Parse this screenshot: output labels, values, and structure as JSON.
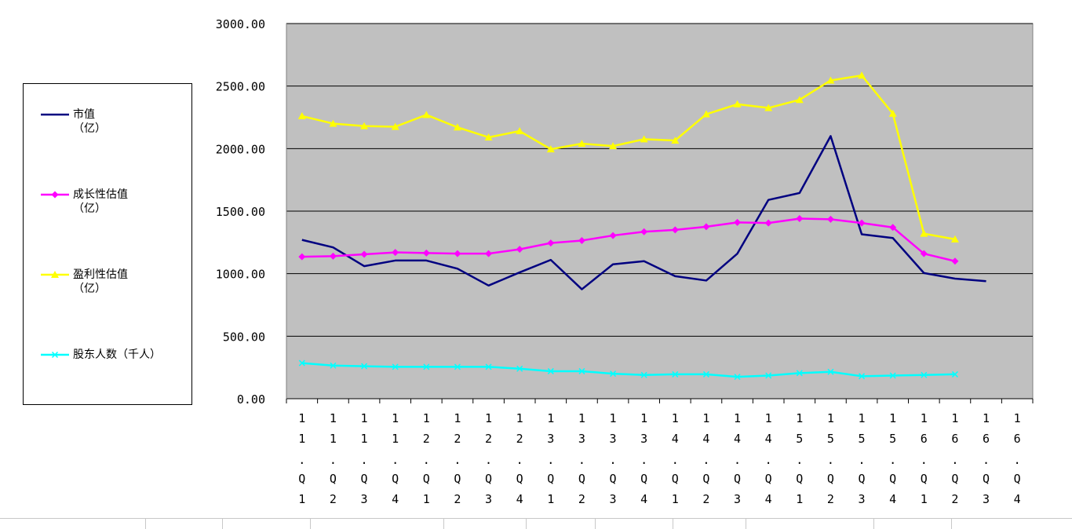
{
  "chart_data": {
    "type": "line",
    "categories": [
      "11.Q1",
      "11.Q2",
      "11.Q3",
      "11.Q4",
      "12.Q1",
      "12.Q2",
      "12.Q3",
      "12.Q4",
      "13.Q1",
      "13.Q2",
      "13.Q3",
      "13.Q4",
      "14.Q1",
      "14.Q2",
      "14.Q3",
      "14.Q4",
      "15.Q1",
      "15.Q2",
      "15.Q3",
      "15.Q4",
      "16.Q1",
      "16.Q2",
      "16.Q3",
      "16.Q4"
    ],
    "ylim": [
      0,
      3000
    ],
    "yticks": [
      "0.00",
      "500.00",
      "1000.00",
      "1500.00",
      "2000.00",
      "2500.00",
      "3000.00"
    ],
    "plot_background": "#c0c0c0",
    "grid": true,
    "legend_position": "left",
    "series": [
      {
        "name": "市值\n（亿）",
        "color": "#000080",
        "marker": "none",
        "values": [
          1270,
          1210,
          1060,
          1105,
          1105,
          1040,
          905,
          1010,
          1110,
          875,
          1075,
          1100,
          980,
          945,
          1160,
          1590,
          1645,
          2100,
          1315,
          1285,
          1005,
          960,
          940,
          null
        ]
      },
      {
        "name": "成长性估值\n（亿）",
        "color": "#ff00ff",
        "marker": "diamond",
        "values": [
          1135,
          1140,
          1155,
          1170,
          1165,
          1160,
          1160,
          1195,
          1245,
          1265,
          1305,
          1335,
          1350,
          1375,
          1410,
          1405,
          1440,
          1435,
          1405,
          1370,
          1160,
          1100,
          null,
          null
        ]
      },
      {
        "name": "盈利性估值\n（亿）",
        "color": "#ffff00",
        "marker": "triangle",
        "values": [
          2260,
          2200,
          2180,
          2175,
          2270,
          2170,
          2090,
          2140,
          1995,
          2040,
          2020,
          2075,
          2065,
          2275,
          2355,
          2325,
          2390,
          2545,
          2585,
          2280,
          1320,
          1275,
          null,
          null
        ]
      },
      {
        "name": "股东人数（千人）",
        "color": "#00ffff",
        "marker": "x",
        "values": [
          285,
          265,
          260,
          255,
          255,
          255,
          255,
          240,
          220,
          220,
          200,
          190,
          195,
          195,
          175,
          185,
          205,
          215,
          180,
          185,
          190,
          195,
          null,
          null
        ]
      }
    ]
  }
}
